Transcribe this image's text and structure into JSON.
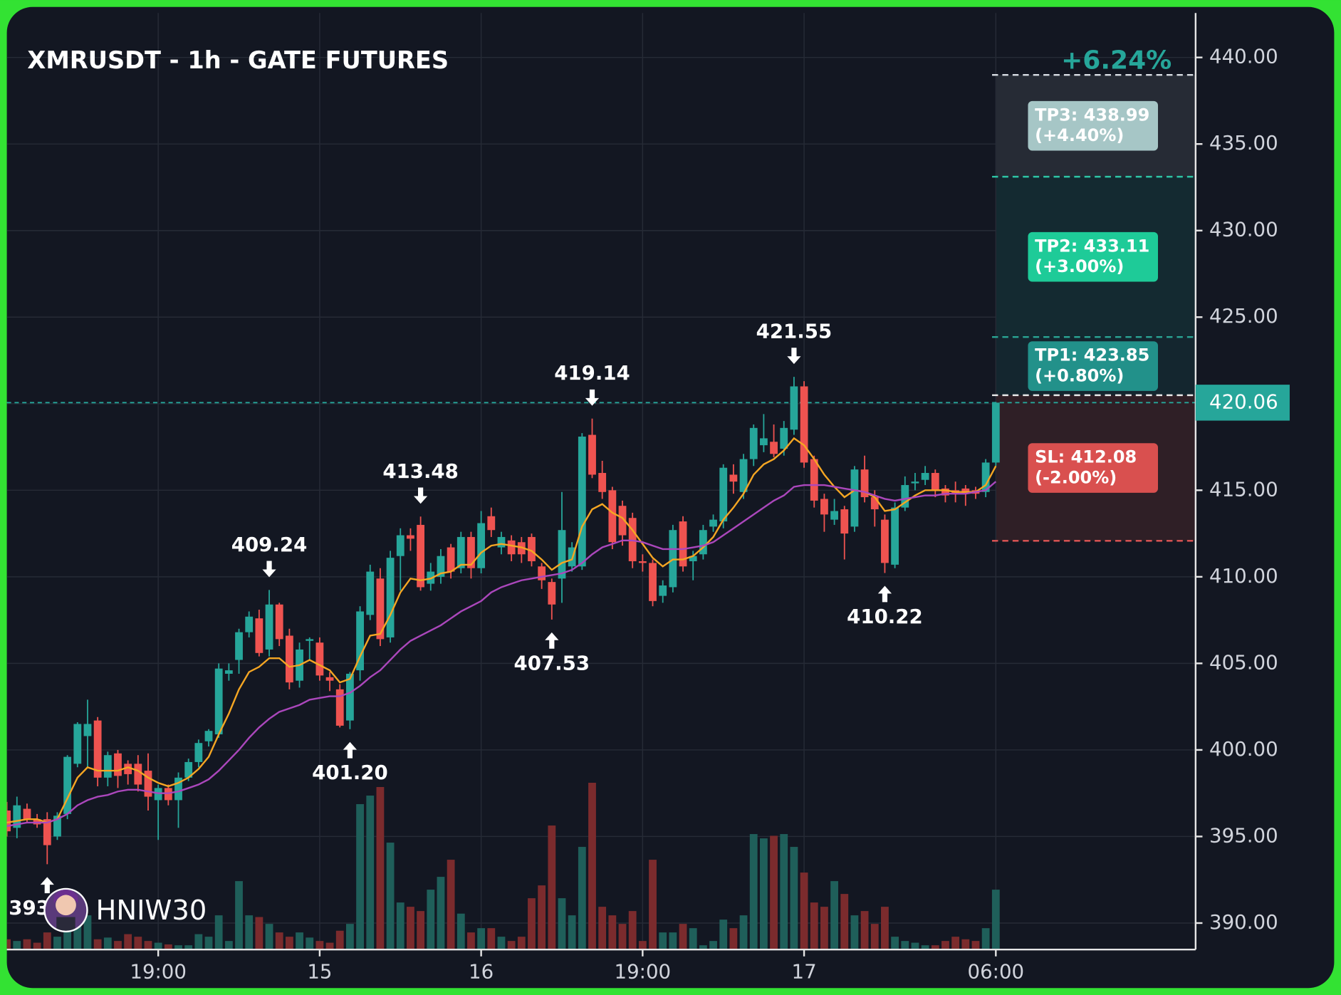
{
  "chart_data": {
    "type": "candlestick",
    "title": "XMRUSDT - 1h - GATE FUTURES",
    "watermark": "HNIW30",
    "categories": [
      null,
      null,
      null,
      null,
      null,
      null,
      null,
      null,
      null,
      null,
      null,
      null,
      null,
      null,
      null,
      "19:00",
      null,
      null,
      null,
      null,
      null,
      null,
      null,
      null,
      null,
      null,
      null,
      null,
      null,
      null,
      null,
      "15",
      null,
      null,
      null,
      null,
      null,
      null,
      null,
      null,
      null,
      null,
      null,
      null,
      null,
      null,
      null,
      "16",
      null,
      null,
      null,
      null,
      null,
      null,
      null,
      null,
      null,
      null,
      null,
      null,
      null,
      null,
      null,
      "19:00",
      null,
      null,
      null,
      null,
      null,
      null,
      null,
      null,
      null,
      null,
      null,
      null,
      null,
      null,
      null,
      "17",
      null,
      null,
      null,
      null,
      null,
      null,
      null,
      null,
      null,
      null,
      null,
      null,
      null,
      null,
      null,
      null,
      null,
      null,
      "06:00"
    ],
    "open": [
      396.5,
      395.5,
      396.6,
      396.0,
      396.0,
      395.0,
      396.3,
      399.2,
      400.8,
      401.7,
      398.4,
      399.8,
      399.2,
      399.2,
      398.8,
      397.1,
      397.8,
      397.1,
      398.4,
      399.3,
      400.5,
      400.9,
      404.4,
      405.2,
      406.8,
      407.6,
      405.8,
      408.4,
      406.6,
      404.0,
      406.3,
      406.2,
      404.2,
      403.5,
      401.7,
      404.6,
      407.8,
      409.9,
      406.5,
      411.2,
      412.4,
      413.0,
      409.6,
      410.0,
      411.7,
      410.5,
      412.3,
      410.5,
      413.5,
      411.7,
      412.1,
      412.0,
      412.3,
      410.6,
      409.7,
      409.9,
      410.6,
      410.6,
      418.2,
      416.0,
      415.0,
      414.1,
      413.4,
      410.9,
      410.8,
      408.9,
      409.4,
      413.2,
      410.9,
      411.3,
      412.9,
      413.2,
      415.9,
      414.9,
      416.8,
      417.6,
      417.8,
      417.4,
      418.5,
      421.0,
      416.8,
      414.5,
      413.3,
      413.9,
      412.9,
      416.2,
      414.6,
      413.3,
      410.7,
      414.0,
      415.4,
      415.6,
      416.0,
      415.1,
      415.0,
      415.1,
      415.0,
      414.9,
      416.6
    ],
    "close": [
      395.3,
      396.8,
      396.0,
      395.7,
      394.5,
      396.2,
      399.6,
      401.5,
      401.5,
      398.4,
      399.7,
      398.5,
      398.6,
      398.0,
      397.3,
      397.8,
      397.1,
      398.4,
      399.3,
      400.4,
      401.1,
      404.7,
      404.6,
      406.8,
      407.7,
      405.6,
      408.4,
      406.4,
      403.9,
      405.8,
      406.4,
      404.3,
      404.0,
      401.4,
      404.4,
      408.0,
      410.3,
      406.4,
      411.1,
      412.4,
      412.2,
      409.4,
      410.3,
      411.2,
      410.3,
      412.3,
      410.5,
      413.1,
      412.7,
      412.3,
      411.3,
      411.3,
      410.9,
      409.8,
      408.4,
      412.7,
      411.7,
      418.1,
      415.9,
      414.9,
      412.0,
      412.4,
      410.9,
      410.8,
      408.6,
      409.5,
      412.7,
      410.6,
      411.2,
      412.7,
      413.3,
      416.3,
      415.5,
      416.8,
      418.6,
      418.0,
      417.1,
      418.6,
      421.0,
      416.6,
      414.4,
      413.6,
      413.8,
      412.5,
      416.2,
      414.6,
      413.9,
      410.8,
      414.0,
      415.3,
      415.5,
      416.0,
      415.0,
      414.7,
      414.8,
      414.8,
      414.8,
      416.6,
      420.06
    ],
    "high": [
      397.0,
      397.3,
      396.9,
      396.3,
      396.4,
      396.4,
      399.7,
      401.6,
      402.9,
      401.9,
      399.9,
      400.0,
      399.4,
      399.7,
      399.8,
      398.0,
      398.0,
      398.7,
      399.5,
      400.6,
      401.2,
      405.0,
      405.0,
      407.0,
      408.0,
      408.1,
      409.24,
      408.5,
      407.0,
      406.2,
      406.5,
      406.5,
      404.5,
      403.8,
      404.5,
      408.3,
      410.7,
      410.5,
      411.5,
      412.8,
      412.8,
      413.48,
      410.8,
      411.6,
      411.9,
      412.6,
      412.6,
      413.8,
      414.0,
      412.6,
      412.4,
      412.3,
      412.5,
      410.8,
      409.9,
      414.9,
      412.0,
      418.3,
      419.14,
      416.7,
      415.2,
      414.4,
      413.7,
      411.3,
      411.0,
      409.8,
      413.0,
      413.5,
      411.5,
      413.0,
      413.6,
      416.5,
      416.5,
      417.1,
      418.8,
      419.4,
      418.8,
      419.0,
      421.55,
      421.3,
      417.0,
      414.8,
      414.5,
      414.1,
      416.4,
      417.0,
      415.0,
      413.6,
      414.3,
      415.8,
      416.0,
      416.4,
      416.2,
      415.3,
      415.5,
      415.3,
      415.2,
      416.8,
      420.1
    ],
    "low": [
      395.0,
      394.9,
      395.8,
      395.5,
      393.4,
      394.8,
      396.0,
      399.0,
      399.0,
      397.9,
      397.9,
      397.8,
      398.0,
      397.6,
      396.5,
      394.8,
      396.8,
      395.5,
      398.2,
      399.0,
      400.2,
      400.7,
      404.0,
      404.4,
      406.5,
      405.4,
      405.4,
      406.0,
      403.5,
      403.6,
      405.2,
      404.0,
      403.4,
      401.3,
      401.2,
      404.0,
      407.5,
      406.0,
      406.2,
      409.2,
      411.5,
      409.2,
      409.2,
      409.6,
      409.9,
      410.2,
      409.9,
      410.2,
      412.3,
      411.3,
      410.9,
      410.8,
      410.6,
      409.3,
      407.53,
      408.5,
      410.3,
      410.4,
      415.7,
      414.5,
      411.6,
      411.8,
      410.5,
      410.3,
      408.3,
      408.5,
      409.1,
      410.3,
      409.8,
      411.0,
      412.6,
      412.8,
      414.8,
      414.5,
      416.4,
      417.2,
      416.9,
      417.0,
      418.2,
      416.3,
      414.0,
      412.6,
      413.0,
      411.0,
      412.6,
      414.3,
      412.9,
      410.22,
      410.5,
      413.8,
      415.0,
      415.3,
      414.6,
      414.3,
      414.3,
      414.1,
      414.5,
      414.6,
      416.4
    ],
    "volume": [
      12,
      10,
      12,
      8,
      20,
      15,
      25,
      30,
      40,
      12,
      14,
      10,
      18,
      15,
      10,
      8,
      6,
      5,
      5,
      18,
      15,
      40,
      10,
      80,
      40,
      38,
      30,
      20,
      15,
      20,
      14,
      10,
      8,
      22,
      30,
      170,
      180,
      190,
      125,
      55,
      50,
      45,
      70,
      85,
      105,
      42,
      20,
      25,
      25,
      15,
      10,
      15,
      60,
      75,
      145,
      60,
      40,
      120,
      195,
      50,
      40,
      30,
      45,
      10,
      105,
      20,
      20,
      30,
      25,
      5,
      10,
      35,
      25,
      40,
      135,
      130,
      133,
      135,
      120,
      90,
      55,
      50,
      80,
      65,
      40,
      45,
      30,
      50,
      15,
      10,
      8,
      5,
      5,
      10,
      15,
      12,
      10,
      25,
      70
    ],
    "vlim": [
      0,
      440
    ],
    "up_color": "#26a69a",
    "down_color": "#ef5350",
    "volume_up_color": "#1f5f5a",
    "volume_down_color": "#7b2b2d",
    "lines": [
      {
        "color": "#f5a623",
        "values": [
          395.8,
          395.9,
          396.0,
          396.0,
          395.8,
          396.0,
          397.2,
          398.4,
          399.0,
          398.8,
          398.8,
          398.8,
          399.0,
          398.8,
          398.4,
          398.1,
          397.9,
          398.1,
          398.4,
          398.9,
          399.6,
          400.9,
          402.1,
          403.5,
          404.5,
          404.8,
          405.3,
          405.3,
          404.8,
          404.9,
          405.2,
          404.9,
          404.6,
          403.9,
          404.1,
          405.4,
          406.6,
          406.7,
          407.8,
          409.1,
          409.9,
          409.8,
          409.9,
          410.2,
          410.3,
          410.7,
          410.7,
          411.4,
          411.8,
          411.9,
          411.8,
          411.7,
          411.5,
          411.0,
          410.4,
          410.8,
          411.0,
          412.9,
          413.9,
          414.2,
          413.7,
          413.4,
          412.7,
          411.9,
          411.1,
          410.6,
          411.0,
          411.0,
          411.2,
          411.7,
          412.3,
          413.3,
          414.0,
          414.8,
          415.9,
          416.5,
          416.8,
          417.3,
          418.0,
          417.6,
          416.8,
          415.9,
          415.2,
          414.6,
          415.0,
          414.9,
          414.6,
          413.8,
          413.9,
          414.3,
          414.7,
          415.0,
          415.0,
          415.0,
          414.9,
          414.9,
          414.9,
          415.3,
          416.4
        ]
      },
      {
        "color": "#ab47bc",
        "values": [
          395.6,
          395.7,
          395.8,
          395.8,
          395.8,
          396.0,
          396.3,
          396.8,
          397.1,
          397.3,
          397.4,
          397.6,
          397.7,
          397.7,
          397.6,
          397.5,
          397.5,
          397.6,
          397.8,
          398.0,
          398.3,
          398.8,
          399.4,
          400.0,
          400.7,
          401.3,
          401.8,
          402.2,
          402.4,
          402.6,
          402.9,
          403.0,
          403.1,
          403.1,
          403.3,
          403.7,
          404.2,
          404.6,
          405.2,
          405.8,
          406.3,
          406.6,
          406.9,
          407.2,
          407.6,
          408.0,
          408.3,
          408.6,
          409.1,
          409.4,
          409.6,
          409.8,
          409.9,
          410.0,
          410.1,
          410.2,
          410.4,
          410.8,
          411.3,
          411.7,
          411.9,
          412.1,
          412.1,
          412.0,
          411.8,
          411.6,
          411.6,
          411.6,
          411.7,
          411.8,
          412.0,
          412.4,
          412.8,
          413.2,
          413.6,
          414.0,
          414.4,
          414.7,
          415.2,
          415.3,
          415.3,
          415.3,
          415.2,
          415.1,
          415.0,
          414.9,
          414.7,
          414.5,
          414.4,
          414.5,
          414.6,
          414.7,
          414.7,
          414.8,
          414.8,
          414.8,
          414.9,
          415.0,
          415.5
        ]
      }
    ],
    "annotations": [
      {
        "index": 4,
        "kind": "low",
        "label": "393"
      },
      {
        "index": 26,
        "kind": "high",
        "label": "409.24"
      },
      {
        "index": 34,
        "kind": "low",
        "label": "401.20"
      },
      {
        "index": 41,
        "kind": "high",
        "label": "413.48"
      },
      {
        "index": 54,
        "kind": "low",
        "label": "407.53"
      },
      {
        "index": 58,
        "kind": "high",
        "label": "419.14"
      },
      {
        "index": 78,
        "kind": "high",
        "label": "421.55"
      },
      {
        "index": 87,
        "kind": "low",
        "label": "410.22"
      }
    ],
    "last_price": 420.06,
    "last_price_color": "#26a69a",
    "position": {
      "entry": 420.49,
      "total": "+6.24%",
      "targets": [
        {
          "value": 438.99,
          "label": "TP3: 438.99",
          "pct": "(+4.40%)",
          "color": "#a6c6c6",
          "line": "#d8dde3",
          "zone": "#262b35"
        },
        {
          "value": 433.11,
          "label": "TP2: 433.11",
          "pct": "(+3.00%)",
          "color": "#1ecb98",
          "line": "#2ec4a5",
          "zone": "#142a31"
        },
        {
          "value": 423.85,
          "label": "TP1: 423.85",
          "pct": "(+0.80%)",
          "color": "#22918a",
          "line": "#2aa594",
          "zone": "#14262f"
        }
      ],
      "stop": {
        "value": 412.08,
        "label": "SL: 412.08",
        "pct": "(-2.00%)",
        "color": "#d9504f",
        "line": "#e05555",
        "zone": "#2f1f26"
      }
    },
    "ylim": [
      388.47,
      442.57
    ],
    "yticks": [
      {
        "value": 390,
        "label": "390.00"
      },
      {
        "value": 395,
        "label": "395.00"
      },
      {
        "value": 400,
        "label": "400.00"
      },
      {
        "value": 405,
        "label": "405.00"
      },
      {
        "value": 410,
        "label": "410.00"
      },
      {
        "value": 415,
        "label": "415.00"
      },
      {
        "value": 420,
        "label": "420.00"
      },
      {
        "value": 425,
        "label": "425.00"
      },
      {
        "value": 430,
        "label": "430.00"
      },
      {
        "value": 435,
        "label": "435.00"
      },
      {
        "value": 440,
        "label": "440.00"
      }
    ],
    "grid": true
  }
}
